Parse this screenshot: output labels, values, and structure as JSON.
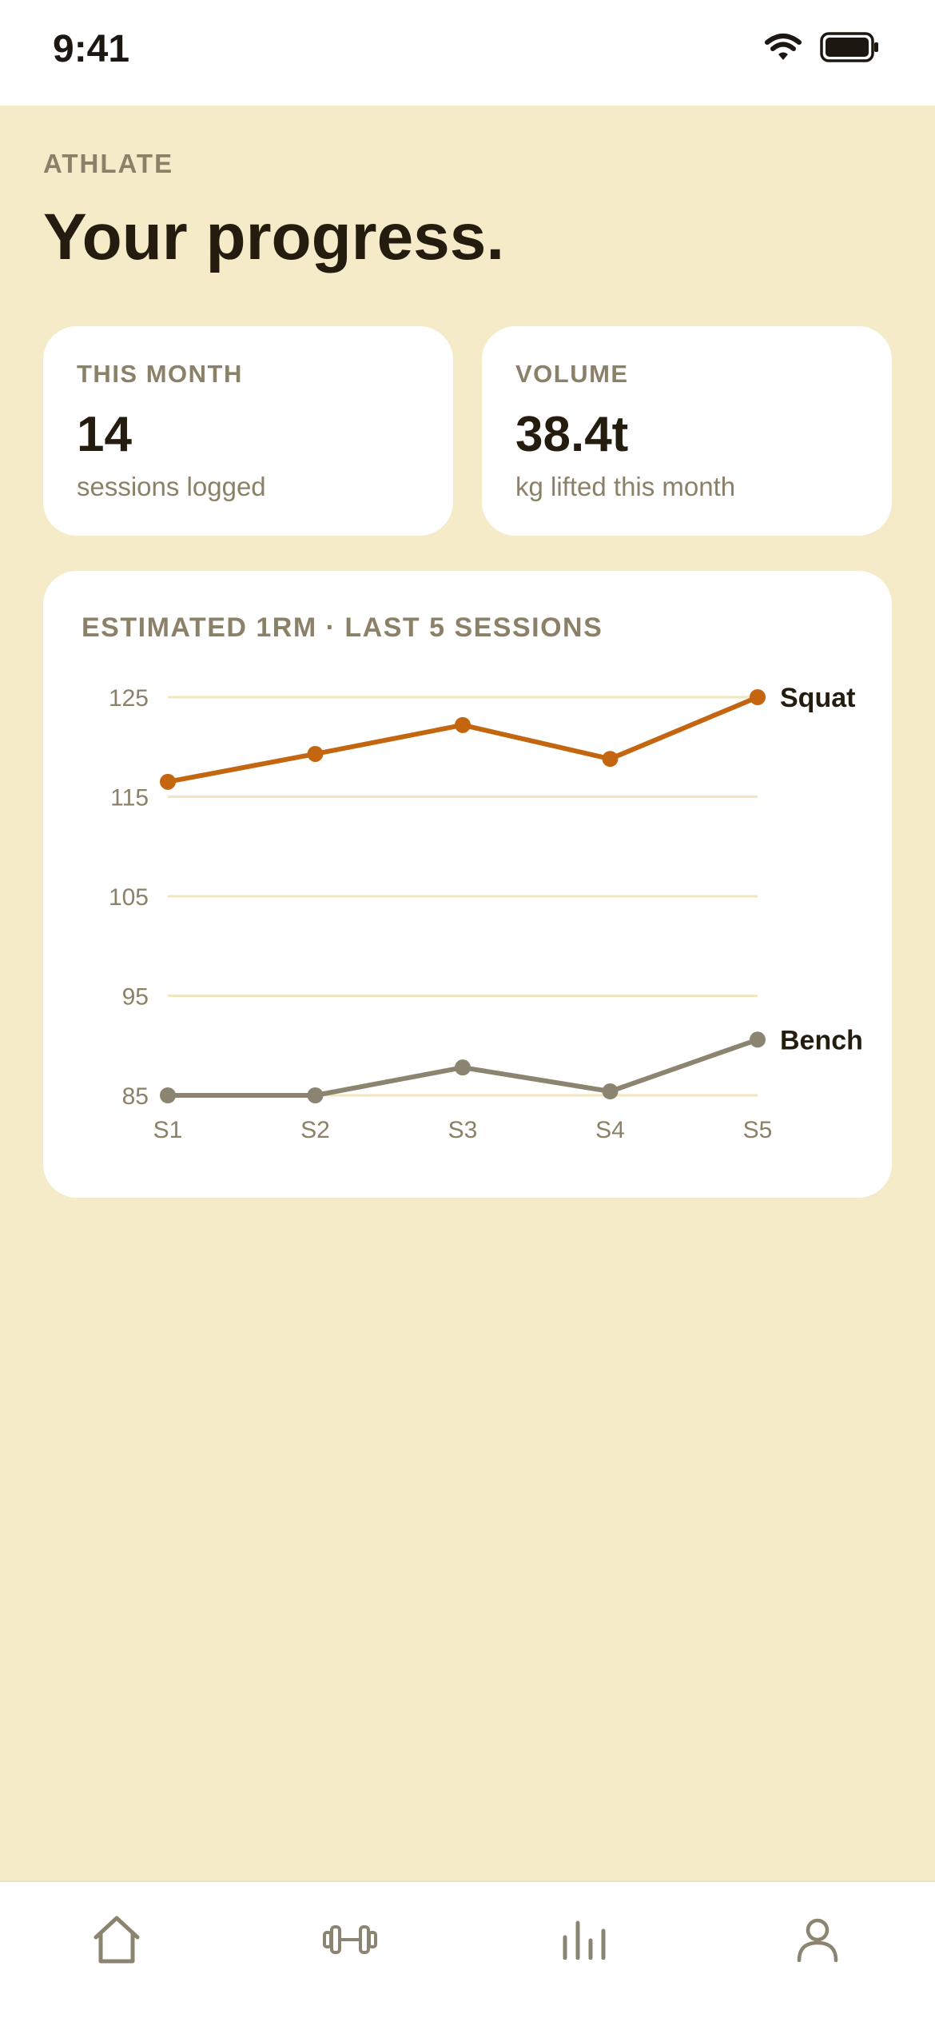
{
  "status_bar": {
    "time": "9:41",
    "icons": [
      "wifi-icon",
      "battery-icon"
    ]
  },
  "header": {
    "brand": "ATHLATE",
    "title": "Your progress."
  },
  "stats": [
    {
      "label": "THIS MONTH",
      "value": "14",
      "sub": "sessions logged"
    },
    {
      "label": "VOLUME",
      "value": "38.4t",
      "sub": "kg lifted this month"
    }
  ],
  "chart": {
    "title": "ESTIMATED 1RM · LAST 5 SESSIONS"
  },
  "chart_data": {
    "type": "line",
    "title": "ESTIMATED 1RM · LAST 5 SESSIONS",
    "categories": [
      "S1",
      "S2",
      "S3",
      "S4",
      "S5"
    ],
    "y_ticks": [
      "125",
      "115",
      "105",
      "95",
      "85"
    ],
    "ylim": [
      85,
      125
    ],
    "grid": true,
    "legend": "end-of-line labels",
    "series": [
      {
        "name": "Squat",
        "color": "#c4660f",
        "values": [
          116.5,
          119.3,
          122.2,
          118.8,
          125
        ]
      },
      {
        "name": "Bench",
        "color": "#8b8470",
        "values": [
          85,
          85,
          87.8,
          85.4,
          90.6
        ]
      }
    ]
  },
  "bottom_nav": {
    "items": [
      "home-icon",
      "dumbbell-icon",
      "stats-icon",
      "profile-icon"
    ],
    "active": "home-icon"
  },
  "colors": {
    "background": "#f5ebc8",
    "card": "#ffffff",
    "text_primary": "#241d0f",
    "text_muted": "#8b8068",
    "accent": "#c4660f",
    "secondary": "#8b8470",
    "grid": "#f1e6bd"
  }
}
